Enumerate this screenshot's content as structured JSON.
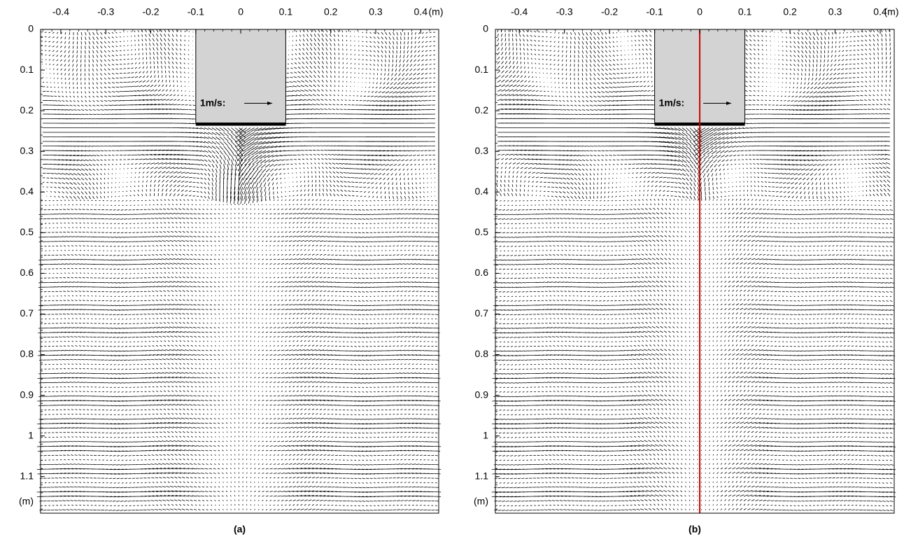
{
  "chart_data": [
    {
      "type": "quiver",
      "caption": "(a)",
      "xunit": "(m)",
      "yunit": "(m)",
      "xlim": [
        -0.445,
        0.44
      ],
      "ylim": [
        0,
        1.19
      ],
      "xticks": [
        -0.4,
        -0.3,
        -0.2,
        -0.1,
        0,
        0.1,
        0.2,
        0.3,
        0.4
      ],
      "yticks": [
        0,
        0.1,
        0.2,
        0.3,
        0.4,
        0.5,
        0.6,
        0.7,
        0.8,
        0.9,
        1,
        1.1
      ],
      "obstacle": {
        "x": [
          -0.1,
          0.1
        ],
        "y": [
          0,
          0.23
        ],
        "color": "#d3d3d3"
      },
      "scale_label": "1m/s:"
    },
    {
      "type": "quiver",
      "caption": "(b)",
      "xunit": "(m)",
      "yunit": "(m)",
      "xlim": [
        -0.453,
        0.431
      ],
      "ylim": [
        0,
        1.19
      ],
      "xticks": [
        -0.4,
        -0.3,
        -0.2,
        -0.1,
        0,
        0.1,
        0.2,
        0.3,
        0.4
      ],
      "yticks": [
        0,
        0.1,
        0.2,
        0.3,
        0.4,
        0.5,
        0.6,
        0.7,
        0.8,
        0.9,
        1,
        1.1
      ],
      "obstacle": {
        "x": [
          -0.1,
          0.1
        ],
        "y": [
          0,
          0.23
        ],
        "color": "#d3d3d3"
      },
      "scale_label": "1m/s:",
      "reference_line": {
        "x": 0,
        "color": "#cc0000"
      }
    }
  ]
}
